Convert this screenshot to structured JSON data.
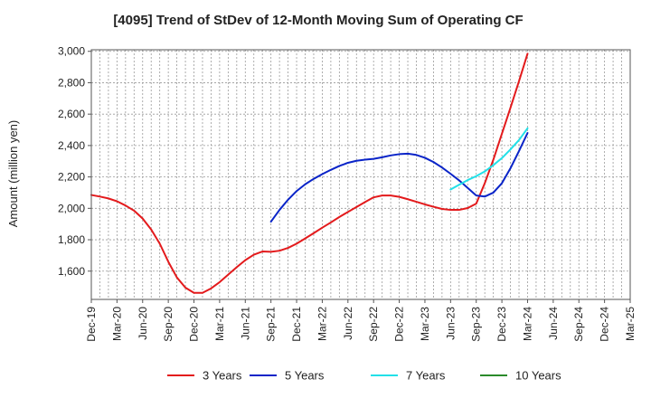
{
  "chart_data": {
    "type": "line",
    "title": "[4095]  Trend of StDev of 12-Month Moving Sum of Operating CF",
    "ylabel": "Amount (million yen)",
    "xlabel": "",
    "ylim": [
      1420,
      3010
    ],
    "yticks": [
      1600,
      1800,
      2000,
      2200,
      2400,
      2600,
      2800,
      3000
    ],
    "ytick_labels": [
      "1,600",
      "1,800",
      "2,000",
      "2,200",
      "2,400",
      "2,600",
      "2,800",
      "3,000"
    ],
    "x_start": "2019-12",
    "x_end": "2025-03",
    "xtick_labels": [
      "Dec-19",
      "Mar-20",
      "Jun-20",
      "Sep-20",
      "Dec-20",
      "Mar-21",
      "Jun-21",
      "Sep-21",
      "Dec-21",
      "Mar-22",
      "Jun-22",
      "Sep-22",
      "Dec-22",
      "Mar-23",
      "Jun-23",
      "Sep-23",
      "Dec-23",
      "Mar-24",
      "Jun-24",
      "Sep-24",
      "Dec-24",
      "Mar-25"
    ],
    "grid": true,
    "legend_position": "bottom",
    "series": [
      {
        "name": "3 Years",
        "color": "#e31a1c",
        "x": [
          "2019-12",
          "2020-01",
          "2020-02",
          "2020-03",
          "2020-04",
          "2020-05",
          "2020-06",
          "2020-07",
          "2020-08",
          "2020-09",
          "2020-10",
          "2020-11",
          "2020-12",
          "2021-01",
          "2021-02",
          "2021-03",
          "2021-04",
          "2021-05",
          "2021-06",
          "2021-07",
          "2021-08",
          "2021-09",
          "2021-10",
          "2021-11",
          "2021-12",
          "2022-01",
          "2022-02",
          "2022-03",
          "2022-04",
          "2022-05",
          "2022-06",
          "2022-07",
          "2022-08",
          "2022-09",
          "2022-10",
          "2022-11",
          "2022-12",
          "2023-01",
          "2023-02",
          "2023-03",
          "2023-04",
          "2023-05",
          "2023-06",
          "2023-07",
          "2023-08",
          "2023-09",
          "2023-10",
          "2023-11",
          "2023-12",
          "2024-01",
          "2024-02",
          "2024-03"
        ],
        "values": [
          2085,
          2075,
          2063,
          2045,
          2018,
          1985,
          1935,
          1865,
          1775,
          1660,
          1560,
          1495,
          1462,
          1462,
          1490,
          1530,
          1578,
          1625,
          1670,
          1705,
          1725,
          1723,
          1730,
          1748,
          1775,
          1808,
          1842,
          1877,
          1910,
          1945,
          1977,
          2008,
          2040,
          2070,
          2082,
          2082,
          2073,
          2058,
          2042,
          2025,
          2010,
          1996,
          1990,
          1990,
          2002,
          2030,
          2160,
          2310,
          2475,
          2640,
          2810,
          2985
        ]
      },
      {
        "name": "5 Years",
        "color": "#0a24c8",
        "x": [
          "2021-09",
          "2021-10",
          "2021-11",
          "2021-12",
          "2022-01",
          "2022-02",
          "2022-03",
          "2022-04",
          "2022-05",
          "2022-06",
          "2022-07",
          "2022-08",
          "2022-09",
          "2022-10",
          "2022-11",
          "2022-12",
          "2023-01",
          "2023-02",
          "2023-03",
          "2023-04",
          "2023-05",
          "2023-06",
          "2023-07",
          "2023-08",
          "2023-09",
          "2023-10",
          "2023-11",
          "2023-12",
          "2024-01",
          "2024-02",
          "2024-03"
        ],
        "values": [
          1915,
          1990,
          2055,
          2110,
          2153,
          2188,
          2218,
          2245,
          2270,
          2290,
          2303,
          2310,
          2315,
          2325,
          2337,
          2345,
          2348,
          2340,
          2322,
          2295,
          2260,
          2220,
          2178,
          2130,
          2082,
          2075,
          2100,
          2160,
          2255,
          2365,
          2480
        ]
      },
      {
        "name": "7 Years",
        "color": "#22e0e8",
        "x": [
          "2023-06",
          "2023-07",
          "2023-08",
          "2023-09",
          "2023-10",
          "2023-11",
          "2023-12",
          "2024-01",
          "2024-02",
          "2024-03"
        ],
        "values": [
          2120,
          2150,
          2180,
          2205,
          2235,
          2275,
          2320,
          2375,
          2435,
          2510
        ]
      },
      {
        "name": "10 Years",
        "color": "#2a8a2a",
        "x": [],
        "values": []
      }
    ]
  }
}
